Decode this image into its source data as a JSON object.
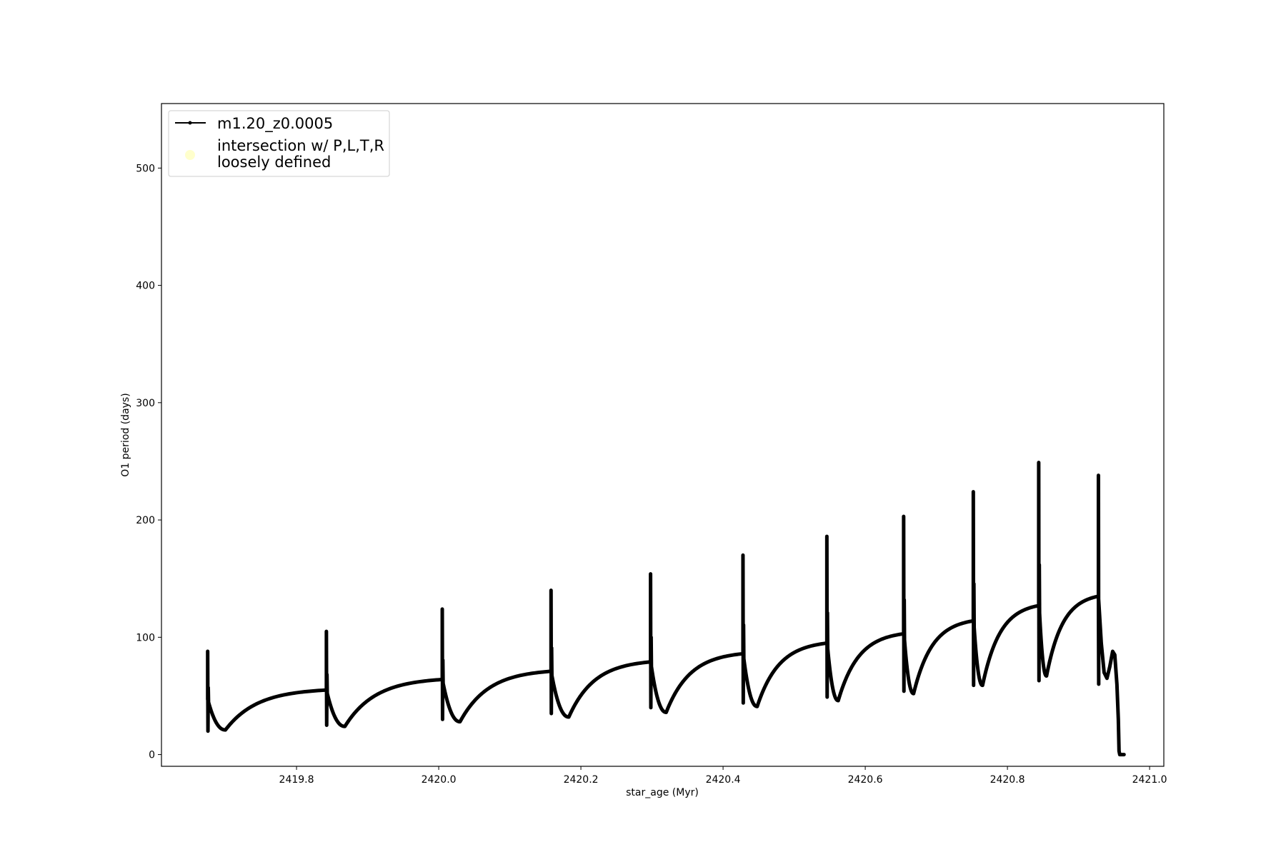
{
  "chart_data": {
    "type": "line",
    "title": "",
    "xlabel": "star_age (Myr)",
    "ylabel": "O1 period (days)",
    "xlim": [
      2419.61,
      2421.02
    ],
    "ylim": [
      -10,
      555
    ],
    "xticks": [
      2419.8,
      2420.0,
      2420.2,
      2420.4,
      2420.6,
      2420.8,
      2421.0
    ],
    "xtick_labels": [
      "2419.8",
      "2420.0",
      "2420.2",
      "2420.4",
      "2420.6",
      "2420.8",
      "2421.0"
    ],
    "yticks": [
      0,
      100,
      200,
      300,
      400,
      500
    ],
    "ytick_labels": [
      "0",
      "100",
      "200",
      "300",
      "400",
      "500"
    ],
    "grid": false,
    "legend_position": "top-left",
    "legend": [
      {
        "label": "m1.20_z0.0005",
        "marker": "line-dot",
        "color": "#000000"
      },
      {
        "label_lines": [
          "intersection w/ P,L,T,R",
          "loosely defined"
        ],
        "marker": "circle",
        "color": "#ffffcc"
      }
    ],
    "series": [
      {
        "name": "m1.20_z0.0005",
        "color": "#000000",
        "cycles": [
          {
            "start": 2419.675,
            "spike_max": 88,
            "spike_min": 20,
            "spike_start": 47,
            "dip_age": 2419.7,
            "dip_value": 21,
            "end_age": 2419.842,
            "end_value": 55
          },
          {
            "start": 2419.842,
            "spike_max": 105,
            "spike_min": 25,
            "spike_start": 55,
            "dip_age": 2419.868,
            "dip_value": 24,
            "end_age": 2420.005,
            "end_value": 64
          },
          {
            "start": 2420.005,
            "spike_max": 124,
            "spike_min": 30,
            "spike_start": 64,
            "dip_age": 2420.03,
            "dip_value": 28,
            "end_age": 2420.158,
            "end_value": 71
          },
          {
            "start": 2420.158,
            "spike_max": 140,
            "spike_min": 35,
            "spike_start": 71,
            "dip_age": 2420.183,
            "dip_value": 32,
            "end_age": 2420.298,
            "end_value": 79
          },
          {
            "start": 2420.298,
            "spike_max": 154,
            "spike_min": 40,
            "spike_start": 79,
            "dip_age": 2420.32,
            "dip_value": 36,
            "end_age": 2420.428,
            "end_value": 86
          },
          {
            "start": 2420.428,
            "spike_max": 170,
            "spike_min": 44,
            "spike_start": 86,
            "dip_age": 2420.448,
            "dip_value": 41,
            "end_age": 2420.546,
            "end_value": 95
          },
          {
            "start": 2420.546,
            "spike_max": 186,
            "spike_min": 49,
            "spike_start": 95,
            "dip_age": 2420.562,
            "dip_value": 46,
            "end_age": 2420.654,
            "end_value": 103
          },
          {
            "start": 2420.654,
            "spike_max": 203,
            "spike_min": 54,
            "spike_start": 103,
            "dip_age": 2420.668,
            "dip_value": 52,
            "end_age": 2420.752,
            "end_value": 114
          },
          {
            "start": 2420.752,
            "spike_max": 224,
            "spike_min": 59,
            "spike_start": 114,
            "dip_age": 2420.765,
            "dip_value": 59,
            "end_age": 2420.844,
            "end_value": 127
          },
          {
            "start": 2420.844,
            "spike_max": 249,
            "spike_min": 63,
            "spike_start": 127,
            "dip_age": 2420.855,
            "dip_value": 67,
            "end_age": 2420.928,
            "end_value": 135
          }
        ],
        "tail": {
          "spike_age": 2420.928,
          "spike_max": 238,
          "spike_min": 60,
          "points": [
            [
              2420.928,
              135
            ],
            [
              2420.932,
              95
            ],
            [
              2420.936,
              70
            ],
            [
              2420.94,
              65
            ],
            [
              2420.944,
              75
            ],
            [
              2420.948,
              88
            ],
            [
              2420.951,
              85
            ],
            [
              2420.954,
              60
            ],
            [
              2420.956,
              30
            ],
            [
              2420.957,
              3
            ],
            [
              2420.958,
              0
            ],
            [
              2420.964,
              0
            ]
          ]
        }
      }
    ]
  }
}
